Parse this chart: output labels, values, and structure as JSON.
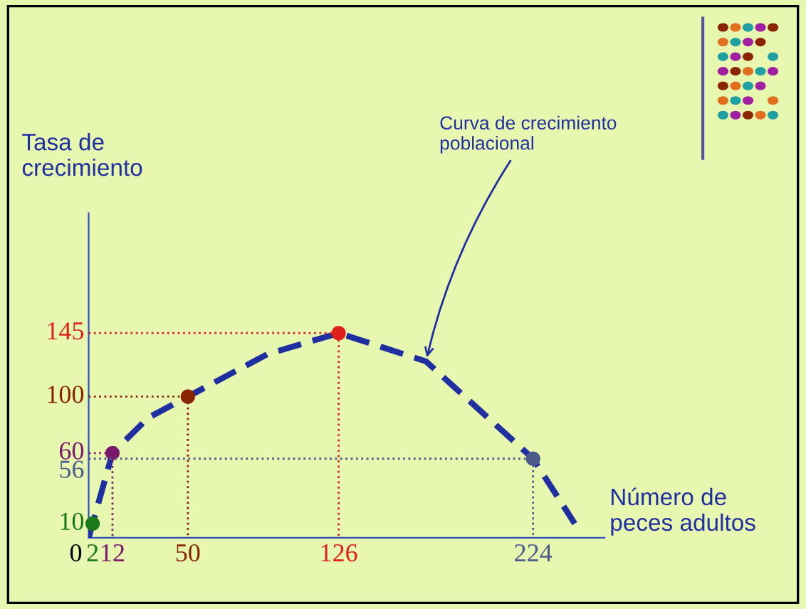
{
  "chart_data": {
    "type": "scatter",
    "xlabel": "Número de\npeces adultos",
    "ylabel": "Tasa de\ncrecimiento",
    "x": [
      2,
      12,
      50,
      126,
      224
    ],
    "series": [
      {
        "type": "scatter",
        "values": [
          10,
          60,
          100,
          145,
          56
        ],
        "colors": [
          "#1a7a1a",
          "#7a1a6a",
          "#8b2500",
          "#e0201a",
          "#4a5a8a"
        ]
      },
      {
        "type": "line",
        "color": "#1f2fa0",
        "line_style": "dashed",
        "marker": "none",
        "x": [
          0,
          2,
          12,
          30,
          50,
          90,
          126,
          170,
          224,
          245
        ],
        "values": [
          0,
          10,
          60,
          85,
          100,
          130,
          145,
          125,
          56,
          10
        ]
      },
      {
        "type": "line",
        "color": "#7a1a6a",
        "line_style": "dotted",
        "x": [
          0,
          12,
          12
        ],
        "values": [
          60,
          60,
          0
        ]
      },
      {
        "type": "line",
        "color": "#8b2500",
        "line_style": "dotted",
        "x": [
          0,
          50,
          50
        ],
        "values": [
          100,
          100,
          0
        ]
      },
      {
        "type": "line",
        "color": "#e0201a",
        "line_style": "dotted",
        "x": [
          0,
          126,
          126
        ],
        "values": [
          145,
          145,
          0
        ]
      },
      {
        "type": "line",
        "color": "#4a5a8a",
        "line_style": "dotted",
        "x": [
          0,
          224,
          224
        ],
        "values": [
          56,
          56,
          0
        ]
      }
    ],
    "xlim": [
      0,
      260
    ],
    "ylim": [
      0,
      230
    ],
    "xticks": [
      0,
      2,
      12,
      50,
      126,
      224
    ],
    "yticks": [
      10,
      56,
      60,
      100,
      145
    ],
    "grid": false,
    "legend": false,
    "annotations": [
      {
        "text": "Curva de crecimiento\npoblacional",
        "x": 170,
        "y": 125
      }
    ]
  }
}
